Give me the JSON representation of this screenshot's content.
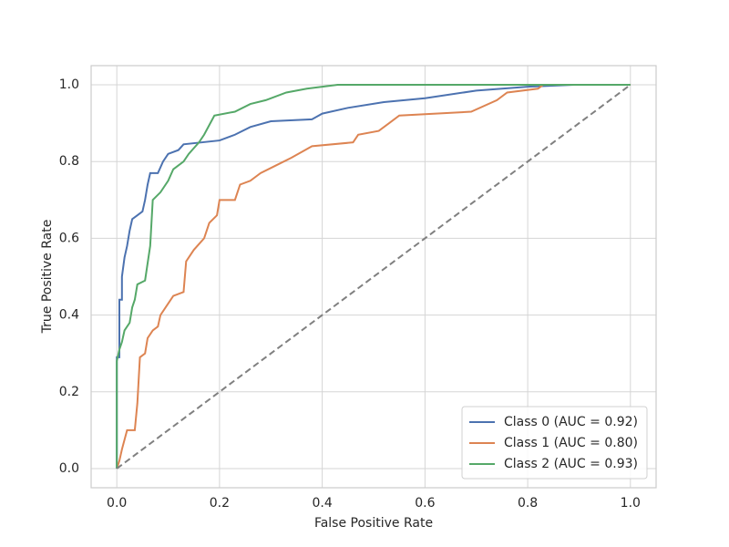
{
  "chart_data": {
    "type": "line",
    "xlabel": "False Positive Rate",
    "ylabel": "True Positive Rate",
    "xlim": [
      -0.05,
      1.05
    ],
    "ylim": [
      -0.05,
      1.05
    ],
    "xticks": [
      {
        "value": 0,
        "label": "0.0"
      },
      0.2,
      0.4,
      0.6,
      0.8,
      {
        "value": 1,
        "label": "1.0"
      }
    ],
    "yticks": [
      {
        "value": 0,
        "label": "0.0"
      },
      0.2,
      0.4,
      0.6,
      0.8,
      {
        "value": 1,
        "label": "1.0"
      }
    ],
    "grid": true,
    "legend": "lower right",
    "series": [
      {
        "name": "Class 0 (AUC = 0.92)",
        "color": "#4c72b0",
        "x": [
          0,
          0,
          0.005,
          0.005,
          0.01,
          0.01,
          0.015,
          0.02,
          0.025,
          0.03,
          0.04,
          0.05,
          0.055,
          0.06,
          0.065,
          0.08,
          0.09,
          0.1,
          0.12,
          0.13,
          0.2,
          0.23,
          0.26,
          0.3,
          0.38,
          0.4,
          0.45,
          0.52,
          0.6,
          0.7,
          0.8,
          0.89,
          1
        ],
        "values": [
          0,
          0.29,
          0.29,
          0.44,
          0.44,
          0.5,
          0.55,
          0.58,
          0.62,
          0.65,
          0.66,
          0.67,
          0.7,
          0.74,
          0.77,
          0.77,
          0.8,
          0.82,
          0.83,
          0.845,
          0.855,
          0.87,
          0.89,
          0.905,
          0.91,
          0.925,
          0.94,
          0.955,
          0.965,
          0.985,
          0.995,
          1,
          1
        ]
      },
      {
        "name": "Class 1 (AUC = 0.80)",
        "color": "#dd8452",
        "x": [
          0,
          0.005,
          0.01,
          0.02,
          0.035,
          0.04,
          0.045,
          0.055,
          0.06,
          0.07,
          0.08,
          0.085,
          0.095,
          0.11,
          0.13,
          0.135,
          0.15,
          0.17,
          0.18,
          0.195,
          0.2,
          0.23,
          0.24,
          0.26,
          0.28,
          0.31,
          0.34,
          0.38,
          0.46,
          0.47,
          0.51,
          0.53,
          0.55,
          0.69,
          0.74,
          0.76,
          0.82,
          0.83,
          1
        ],
        "values": [
          0,
          0.02,
          0.05,
          0.1,
          0.1,
          0.17,
          0.29,
          0.3,
          0.34,
          0.36,
          0.37,
          0.4,
          0.42,
          0.45,
          0.46,
          0.54,
          0.57,
          0.6,
          0.64,
          0.66,
          0.7,
          0.7,
          0.74,
          0.75,
          0.77,
          0.79,
          0.81,
          0.84,
          0.85,
          0.87,
          0.88,
          0.9,
          0.92,
          0.93,
          0.96,
          0.98,
          0.99,
          1,
          1
        ]
      },
      {
        "name": "Class 2 (AUC = 0.93)",
        "color": "#55a868",
        "x": [
          0,
          0,
          0.005,
          0.01,
          0.015,
          0.025,
          0.03,
          0.035,
          0.04,
          0.055,
          0.065,
          0.07,
          0.085,
          0.1,
          0.11,
          0.13,
          0.14,
          0.16,
          0.17,
          0.19,
          0.23,
          0.26,
          0.29,
          0.33,
          0.37,
          0.43,
          1
        ],
        "values": [
          0,
          0.28,
          0.31,
          0.33,
          0.36,
          0.38,
          0.42,
          0.44,
          0.48,
          0.49,
          0.58,
          0.7,
          0.72,
          0.75,
          0.78,
          0.8,
          0.82,
          0.85,
          0.87,
          0.92,
          0.93,
          0.95,
          0.96,
          0.98,
          0.99,
          1,
          1
        ]
      }
    ],
    "diagonal": {
      "color": "#808080",
      "x": [
        0,
        1
      ],
      "values": [
        0,
        1
      ]
    }
  }
}
